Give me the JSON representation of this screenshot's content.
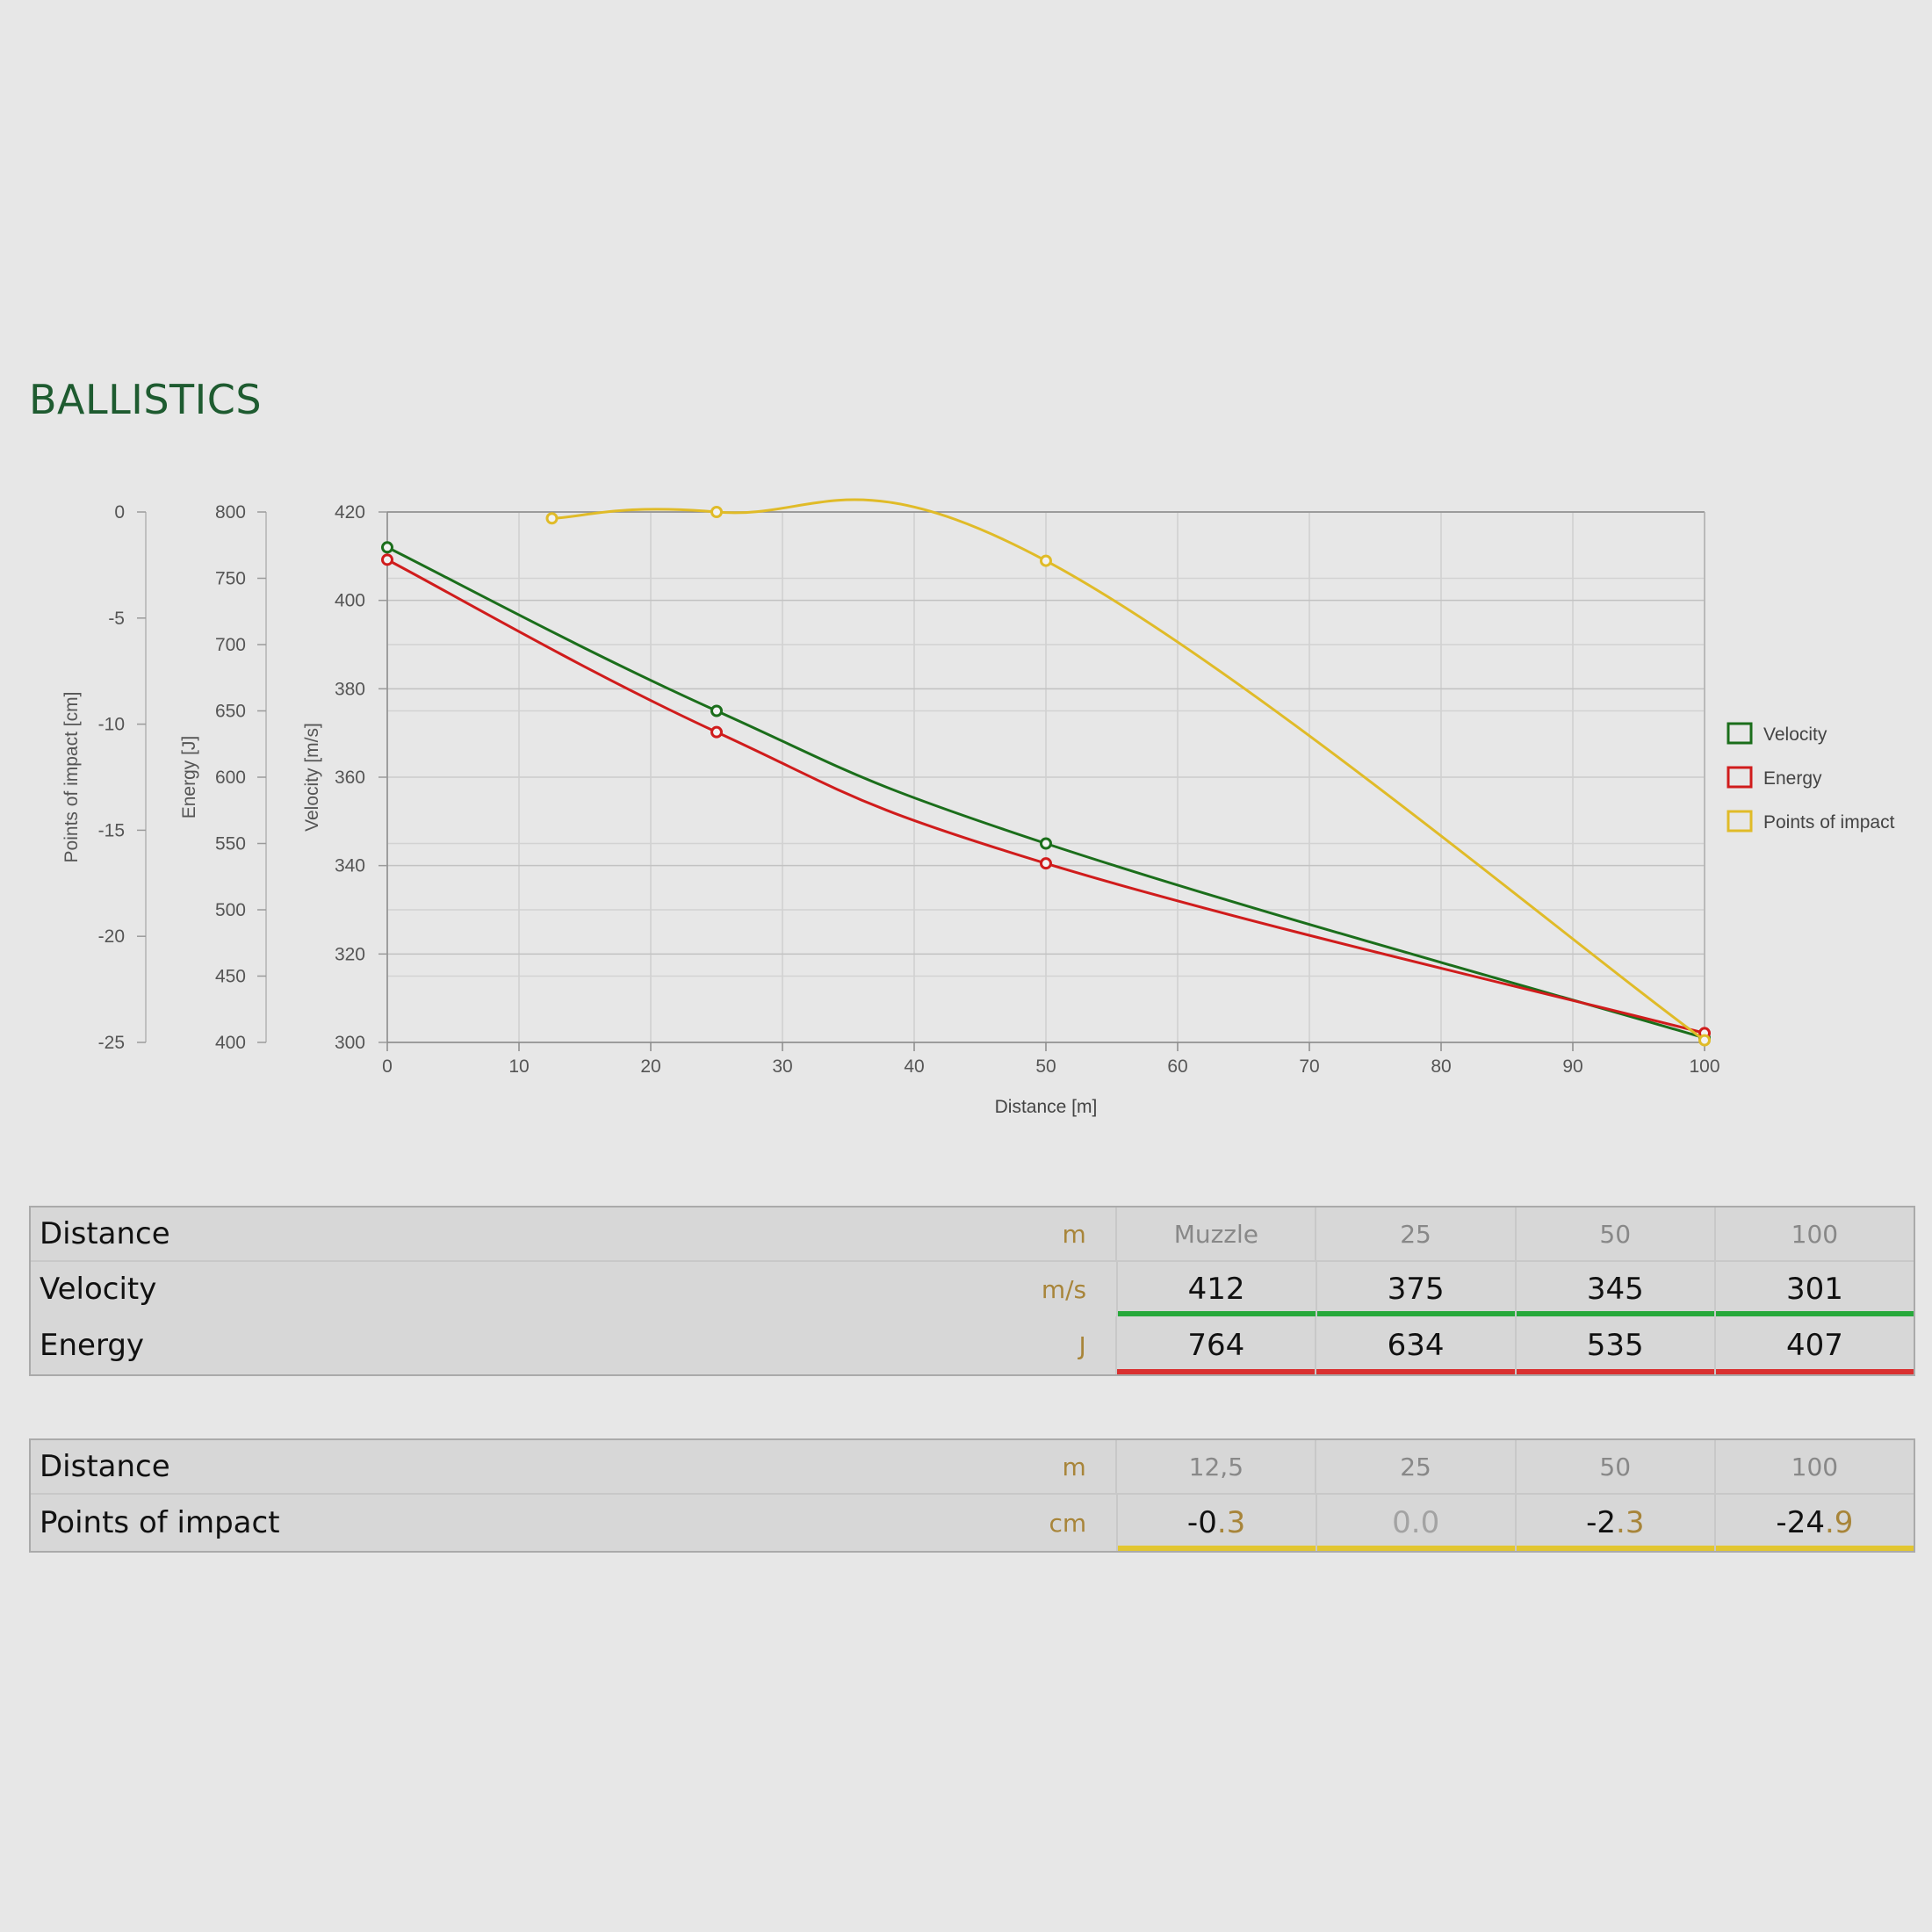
{
  "page_title": "BALLISTICS",
  "colors": {
    "velocity": "#1b6e1b",
    "energy": "#d01c1c",
    "poi": "#e0bb28",
    "velocity_bar": "#27a83a",
    "energy_bar": "#d93030",
    "poi_bar": "#e2c630"
  },
  "chart_data": {
    "type": "line",
    "xlabel": "Distance [m]",
    "xlim": [
      0,
      100
    ],
    "xticks": [
      0,
      10,
      20,
      30,
      40,
      50,
      60,
      70,
      80,
      90,
      100
    ],
    "axes": {
      "velocity": {
        "label": "Velocity [m/s]",
        "lim": [
          300,
          420
        ],
        "ticks": [
          300,
          320,
          340,
          360,
          380,
          400,
          420
        ]
      },
      "energy": {
        "label": "Energy [J]",
        "lim": [
          400,
          800
        ],
        "ticks": [
          400,
          450,
          500,
          550,
          600,
          650,
          700,
          750,
          800
        ]
      },
      "poi": {
        "label": "Points of impact [cm]",
        "lim": [
          -25,
          0
        ],
        "ticks": [
          -25,
          -20,
          -15,
          -10,
          -5,
          0
        ]
      }
    },
    "series": [
      {
        "name": "Velocity",
        "axis": "velocity",
        "x": [
          0,
          25,
          50,
          100
        ],
        "y": [
          412,
          375,
          345,
          301
        ]
      },
      {
        "name": "Energy",
        "axis": "energy",
        "x": [
          0,
          25,
          50,
          100
        ],
        "y": [
          764,
          634,
          535,
          407
        ]
      },
      {
        "name": "Points of impact",
        "axis": "poi",
        "x": [
          12.5,
          25,
          50,
          100
        ],
        "y": [
          -0.3,
          0.0,
          -2.3,
          -24.9
        ]
      }
    ],
    "legend_position": "right",
    "grid": true
  },
  "table1": {
    "header": {
      "label": "Distance",
      "unit": "m",
      "cols": [
        "Muzzle",
        "25",
        "50",
        "100"
      ]
    },
    "velocity": {
      "label": "Velocity",
      "unit": "m/s",
      "values": [
        "412",
        "375",
        "345",
        "301"
      ]
    },
    "energy": {
      "label": "Energy",
      "unit": "J",
      "values": [
        "764",
        "634",
        "535",
        "407"
      ]
    }
  },
  "table2": {
    "header": {
      "label": "Distance",
      "unit": "m",
      "cols": [
        "12,5",
        "25",
        "50",
        "100"
      ]
    },
    "poi": {
      "label": "Points of impact",
      "unit": "cm",
      "values": [
        {
          "whole": "-0",
          "frac": ".3"
        },
        {
          "whole": "0",
          "frac": ".0"
        },
        {
          "whole": "-2",
          "frac": ".3"
        },
        {
          "whole": "-24",
          "frac": ".9"
        }
      ]
    }
  }
}
